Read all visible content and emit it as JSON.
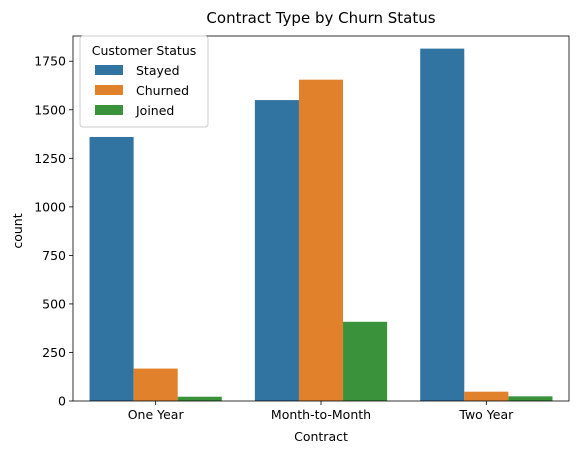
{
  "chart_data": {
    "type": "bar",
    "title": "Contract Type by Churn Status",
    "xlabel": "Contract",
    "ylabel": "count",
    "categories": [
      "One Year",
      "Month-to-Month",
      "Two Year"
    ],
    "ylim": [
      0,
      1880
    ],
    "yticks": [
      0,
      250,
      500,
      750,
      1000,
      1250,
      1500,
      1750
    ],
    "grid": false,
    "legend": {
      "title": "Customer Status",
      "position": "top-left"
    },
    "series": [
      {
        "name": "Stayed",
        "color": "#3274a1",
        "values": [
          1360,
          1550,
          1815
        ]
      },
      {
        "name": "Churned",
        "color": "#e1812c",
        "values": [
          167,
          1655,
          48
        ]
      },
      {
        "name": "Joined",
        "color": "#3a923a",
        "values": [
          22,
          408,
          24
        ]
      }
    ]
  }
}
